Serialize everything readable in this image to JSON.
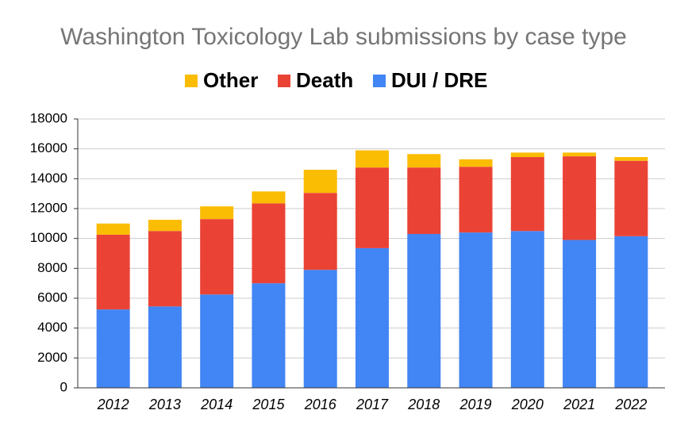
{
  "chart_data": {
    "type": "stacked-bar",
    "title": "Washington Toxicology Lab submissions by case type",
    "categories": [
      "2012",
      "2013",
      "2014",
      "2015",
      "2016",
      "2017",
      "2018",
      "2019",
      "2020",
      "2021",
      "2022"
    ],
    "series": [
      {
        "name": "DUI / DRE",
        "color": "#4285f4",
        "values": [
          5250,
          5450,
          6250,
          7000,
          7900,
          9350,
          10300,
          10400,
          10500,
          9900,
          10150
        ]
      },
      {
        "name": "Death",
        "color": "#ea4335",
        "values": [
          5000,
          5050,
          5050,
          5350,
          5150,
          5400,
          4450,
          4400,
          4950,
          5600,
          5050
        ]
      },
      {
        "name": "Other",
        "color": "#fbbc04",
        "values": [
          750,
          750,
          850,
          800,
          1550,
          1150,
          900,
          500,
          300,
          250,
          250
        ]
      }
    ],
    "ylim": [
      0,
      18000
    ],
    "yticks": [
      0,
      2000,
      4000,
      6000,
      8000,
      10000,
      12000,
      14000,
      16000,
      18000
    ],
    "grid": true,
    "legend": "top"
  }
}
